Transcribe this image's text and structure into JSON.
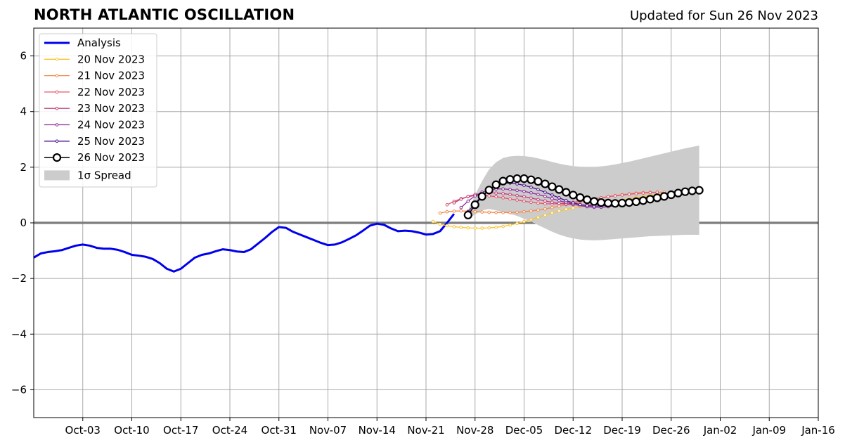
{
  "header": {
    "title": "NORTH ATLANTIC OSCILLATION",
    "subtitle": "Updated for Sun 26 Nov 2023"
  },
  "chart_data": {
    "type": "line",
    "title": "NORTH ATLANTIC OSCILLATION",
    "subtitle": "Updated for Sun 26 Nov 2023",
    "xlabel": "",
    "ylabel": "",
    "x_axis": {
      "type": "date",
      "start": "2023-09-26",
      "end": "2024-01-16",
      "ticks": [
        "2023-10-03",
        "2023-10-10",
        "2023-10-17",
        "2023-10-24",
        "2023-10-31",
        "2023-11-07",
        "2023-11-14",
        "2023-11-21",
        "2023-11-28",
        "2023-12-05",
        "2023-12-12",
        "2023-12-19",
        "2023-12-26",
        "2024-01-02",
        "2024-01-09",
        "2024-01-16"
      ],
      "tick_labels": [
        "Oct-03",
        "Oct-10",
        "Oct-17",
        "Oct-24",
        "Oct-31",
        "Nov-07",
        "Nov-14",
        "Nov-21",
        "Nov-28",
        "Dec-05",
        "Dec-12",
        "Dec-19",
        "Dec-26",
        "Jan-02",
        "Jan-09",
        "Jan-16"
      ]
    },
    "y_axis": {
      "ylim": [
        -7,
        7
      ],
      "ticks": [
        -6,
        -4,
        -2,
        0,
        2,
        4,
        6
      ],
      "tick_labels": [
        "−6",
        "−4",
        "−2",
        "0",
        "2",
        "4",
        "6"
      ]
    },
    "grid": true,
    "legend_position": "top-left",
    "reference_line": 0,
    "series": [
      {
        "name": "Analysis",
        "color": "#0000ee",
        "style": "analysis",
        "start": "2023-09-26",
        "values": [
          -1.25,
          -1.1,
          -1.05,
          -1.02,
          -0.98,
          -0.9,
          -0.82,
          -0.78,
          -0.82,
          -0.9,
          -0.93,
          -0.93,
          -0.97,
          -1.05,
          -1.15,
          -1.18,
          -1.22,
          -1.3,
          -1.45,
          -1.65,
          -1.75,
          -1.65,
          -1.45,
          -1.25,
          -1.15,
          -1.1,
          -1.02,
          -0.95,
          -0.98,
          -1.03,
          -1.05,
          -0.95,
          -0.75,
          -0.55,
          -0.33,
          -0.15,
          -0.18,
          -0.32,
          -0.42,
          -0.52,
          -0.62,
          -0.72,
          -0.8,
          -0.78,
          -0.7,
          -0.58,
          -0.45,
          -0.28,
          -0.1,
          -0.03,
          -0.07,
          -0.2,
          -0.3,
          -0.28,
          -0.3,
          -0.35,
          -0.42,
          -0.4,
          -0.3,
          0.0,
          0.32
        ]
      },
      {
        "name": "20 Nov 2023",
        "color": "#f9c32e",
        "style": "small",
        "start": "2023-11-22",
        "values": [
          0.05,
          -0.05,
          -0.1,
          -0.14,
          -0.16,
          -0.18,
          -0.19,
          -0.19,
          -0.18,
          -0.16,
          -0.13,
          -0.08,
          -0.02,
          0.05,
          0.12,
          0.2,
          0.28,
          0.36,
          0.43,
          0.49,
          0.54,
          0.58,
          0.62,
          0.66,
          0.7,
          0.74,
          0.78,
          0.82,
          0.86,
          0.9,
          0.94,
          0.98,
          1.01,
          1.04,
          1.07,
          1.09
        ]
      },
      {
        "name": "21 Nov 2023",
        "color": "#f4874a",
        "style": "small",
        "start": "2023-11-23",
        "values": [
          0.35,
          0.4,
          0.42,
          0.43,
          0.42,
          0.4,
          0.39,
          0.38,
          0.37,
          0.37,
          0.37,
          0.38,
          0.4,
          0.43,
          0.46,
          0.5,
          0.55,
          0.6,
          0.65,
          0.7,
          0.76,
          0.81,
          0.86,
          0.9,
          0.94,
          0.98,
          1.01,
          1.04,
          1.07,
          1.09,
          1.1,
          1.1,
          1.1
        ]
      },
      {
        "name": "22 Nov 2023",
        "color": "#e2566c",
        "style": "small",
        "start": "2023-11-24",
        "values": [
          0.65,
          0.77,
          0.87,
          0.94,
          0.98,
          0.99,
          0.97,
          0.94,
          0.9,
          0.86,
          0.82,
          0.78,
          0.74,
          0.71,
          0.69,
          0.68,
          0.69,
          0.71,
          0.74,
          0.78,
          0.82,
          0.86,
          0.9,
          0.94,
          0.97,
          1.0,
          1.03,
          1.05,
          1.07,
          1.09,
          1.1
        ]
      },
      {
        "name": "23 Nov 2023",
        "color": "#c23e7e",
        "style": "small",
        "start": "2023-11-25",
        "values": [
          0.72,
          0.85,
          0.95,
          1.02,
          1.06,
          1.08,
          1.07,
          1.05,
          1.02,
          0.98,
          0.94,
          0.89,
          0.84,
          0.79,
          0.74,
          0.7,
          0.67,
          0.65,
          0.64,
          0.64,
          0.65,
          0.67,
          0.7,
          0.74,
          0.78,
          0.82,
          0.86,
          0.9,
          0.94,
          0.98,
          1.02
        ]
      },
      {
        "name": "24 Nov 2023",
        "color": "#8c2a9a",
        "style": "small",
        "start": "2023-11-26",
        "values": [
          0.55,
          0.78,
          0.97,
          1.1,
          1.18,
          1.22,
          1.22,
          1.2,
          1.17,
          1.13,
          1.08,
          1.02,
          0.95,
          0.87,
          0.8,
          0.73,
          0.67,
          0.62,
          0.58,
          0.56,
          0.56,
          0.58,
          0.62,
          0.67,
          0.72,
          0.77,
          0.82,
          0.86,
          0.9,
          0.93
        ]
      },
      {
        "name": "25 Nov 2023",
        "color": "#4b0f8f",
        "style": "small",
        "start": "2023-11-27",
        "values": [
          0.4,
          0.7,
          0.98,
          1.2,
          1.35,
          1.42,
          1.43,
          1.4,
          1.35,
          1.28,
          1.2,
          1.1,
          1.0,
          0.9,
          0.8,
          0.72,
          0.66,
          0.62,
          0.6,
          0.61,
          0.63,
          0.67,
          0.72,
          0.77,
          0.82,
          0.86,
          0.9,
          0.94
        ]
      },
      {
        "name": "26 Nov 2023",
        "color": "#000000",
        "style": "circles",
        "start": "2023-11-27",
        "values": [
          0.28,
          0.65,
          0.95,
          1.18,
          1.37,
          1.5,
          1.56,
          1.59,
          1.59,
          1.55,
          1.49,
          1.4,
          1.3,
          1.2,
          1.1,
          1.0,
          0.91,
          0.83,
          0.77,
          0.73,
          0.71,
          0.7,
          0.71,
          0.73,
          0.76,
          0.8,
          0.85,
          0.9,
          0.95,
          1.01,
          1.07,
          1.12,
          1.15,
          1.17
        ]
      },
      {
        "name": "1σ Spread",
        "color": "#cccccc",
        "style": "band",
        "start": "2023-11-27",
        "upper": [
          0.45,
          1.0,
          1.5,
          1.92,
          2.18,
          2.33,
          2.39,
          2.41,
          2.4,
          2.37,
          2.32,
          2.26,
          2.19,
          2.13,
          2.08,
          2.04,
          2.02,
          2.01,
          2.01,
          2.03,
          2.06,
          2.1,
          2.15,
          2.2,
          2.26,
          2.32,
          2.38,
          2.44,
          2.5,
          2.56,
          2.62,
          2.68,
          2.73,
          2.78
        ],
        "lower": [
          0.15,
          0.3,
          0.45,
          0.5,
          0.45,
          0.38,
          0.32,
          0.25,
          0.15,
          0.05,
          -0.08,
          -0.2,
          -0.32,
          -0.42,
          -0.5,
          -0.56,
          -0.6,
          -0.62,
          -0.63,
          -0.62,
          -0.6,
          -0.58,
          -0.56,
          -0.54,
          -0.52,
          -0.5,
          -0.48,
          -0.47,
          -0.46,
          -0.45,
          -0.44,
          -0.43,
          -0.43,
          -0.43
        ]
      }
    ]
  }
}
